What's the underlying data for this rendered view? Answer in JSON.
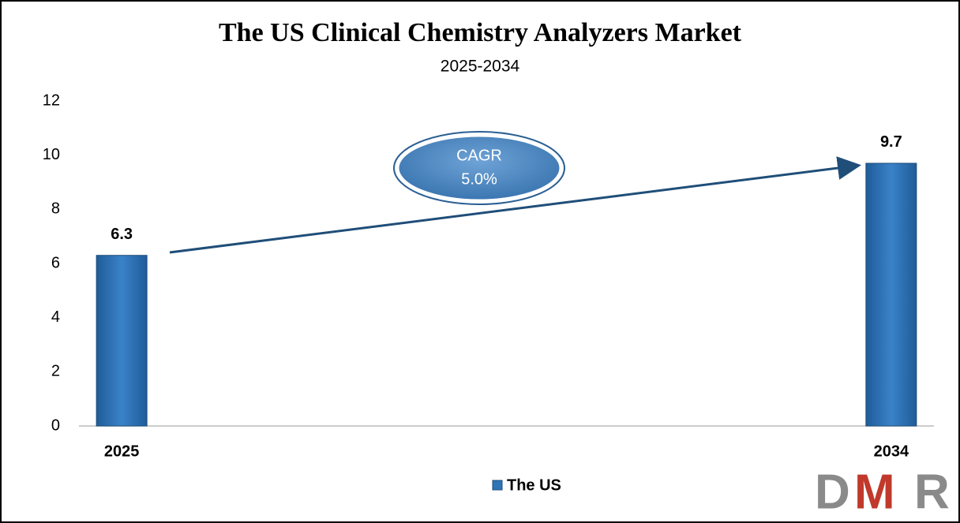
{
  "chart_data": {
    "type": "bar",
    "title": "The US Clinical Chemistry Analyzers Market",
    "subtitle": "2025-2034",
    "categories": [
      "2025",
      null,
      null,
      null,
      null,
      null,
      null,
      null,
      null,
      "2034"
    ],
    "series": [
      {
        "name": "The US",
        "color": "#2e75b6",
        "values": [
          6.3,
          null,
          null,
          null,
          null,
          null,
          null,
          null,
          null,
          9.7
        ]
      }
    ],
    "ylim": [
      0,
      12
    ],
    "yticks": [
      0,
      2,
      4,
      6,
      8,
      10,
      12
    ],
    "grid": false,
    "legend": "bottom",
    "annotation": [
      "CAGR",
      "5.0%"
    ],
    "logo": [
      "D",
      "M",
      "R"
    ]
  }
}
